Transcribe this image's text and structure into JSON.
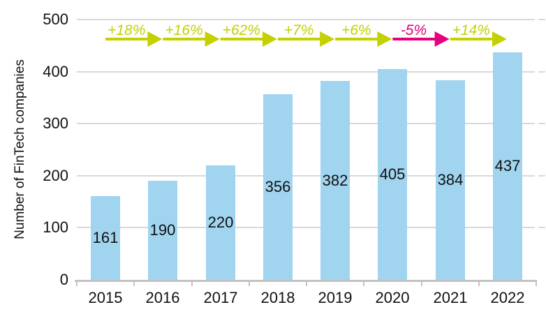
{
  "chart_data": {
    "type": "bar",
    "title": "",
    "ylabel": "Number of FinTech companies",
    "xlabel": "",
    "categories": [
      "2015",
      "2016",
      "2017",
      "2018",
      "2019",
      "2020",
      "2021",
      "2022"
    ],
    "values": [
      161,
      190,
      220,
      356,
      382,
      405,
      384,
      437
    ],
    "ylim": [
      0,
      500
    ],
    "yticks": [
      0,
      100,
      200,
      300,
      400,
      500
    ],
    "grid": "horizontal-only",
    "legend": "none",
    "bar_color": "#a0d4ef",
    "value_label_position": "centered-inside-bar",
    "growth_arrows": [
      {
        "from": "2015",
        "to": "2016",
        "label": "+18%",
        "color": "#c3d100"
      },
      {
        "from": "2016",
        "to": "2017",
        "label": "+16%",
        "color": "#c3d100"
      },
      {
        "from": "2017",
        "to": "2018",
        "label": "+62%",
        "color": "#c3d100"
      },
      {
        "from": "2018",
        "to": "2019",
        "label": "+7%",
        "color": "#c3d100"
      },
      {
        "from": "2019",
        "to": "2020",
        "label": "+6%",
        "color": "#c3d100"
      },
      {
        "from": "2020",
        "to": "2021",
        "label": "-5%",
        "color": "#e5007d"
      },
      {
        "from": "2021",
        "to": "2022",
        "label": "+14%",
        "color": "#c3d100"
      }
    ],
    "colors": {
      "positive_arrow": "#c3d100",
      "negative_arrow": "#e5007d",
      "gridline": "#d9d9d9",
      "axis": "#c3c3c3",
      "text": "#111111"
    }
  }
}
